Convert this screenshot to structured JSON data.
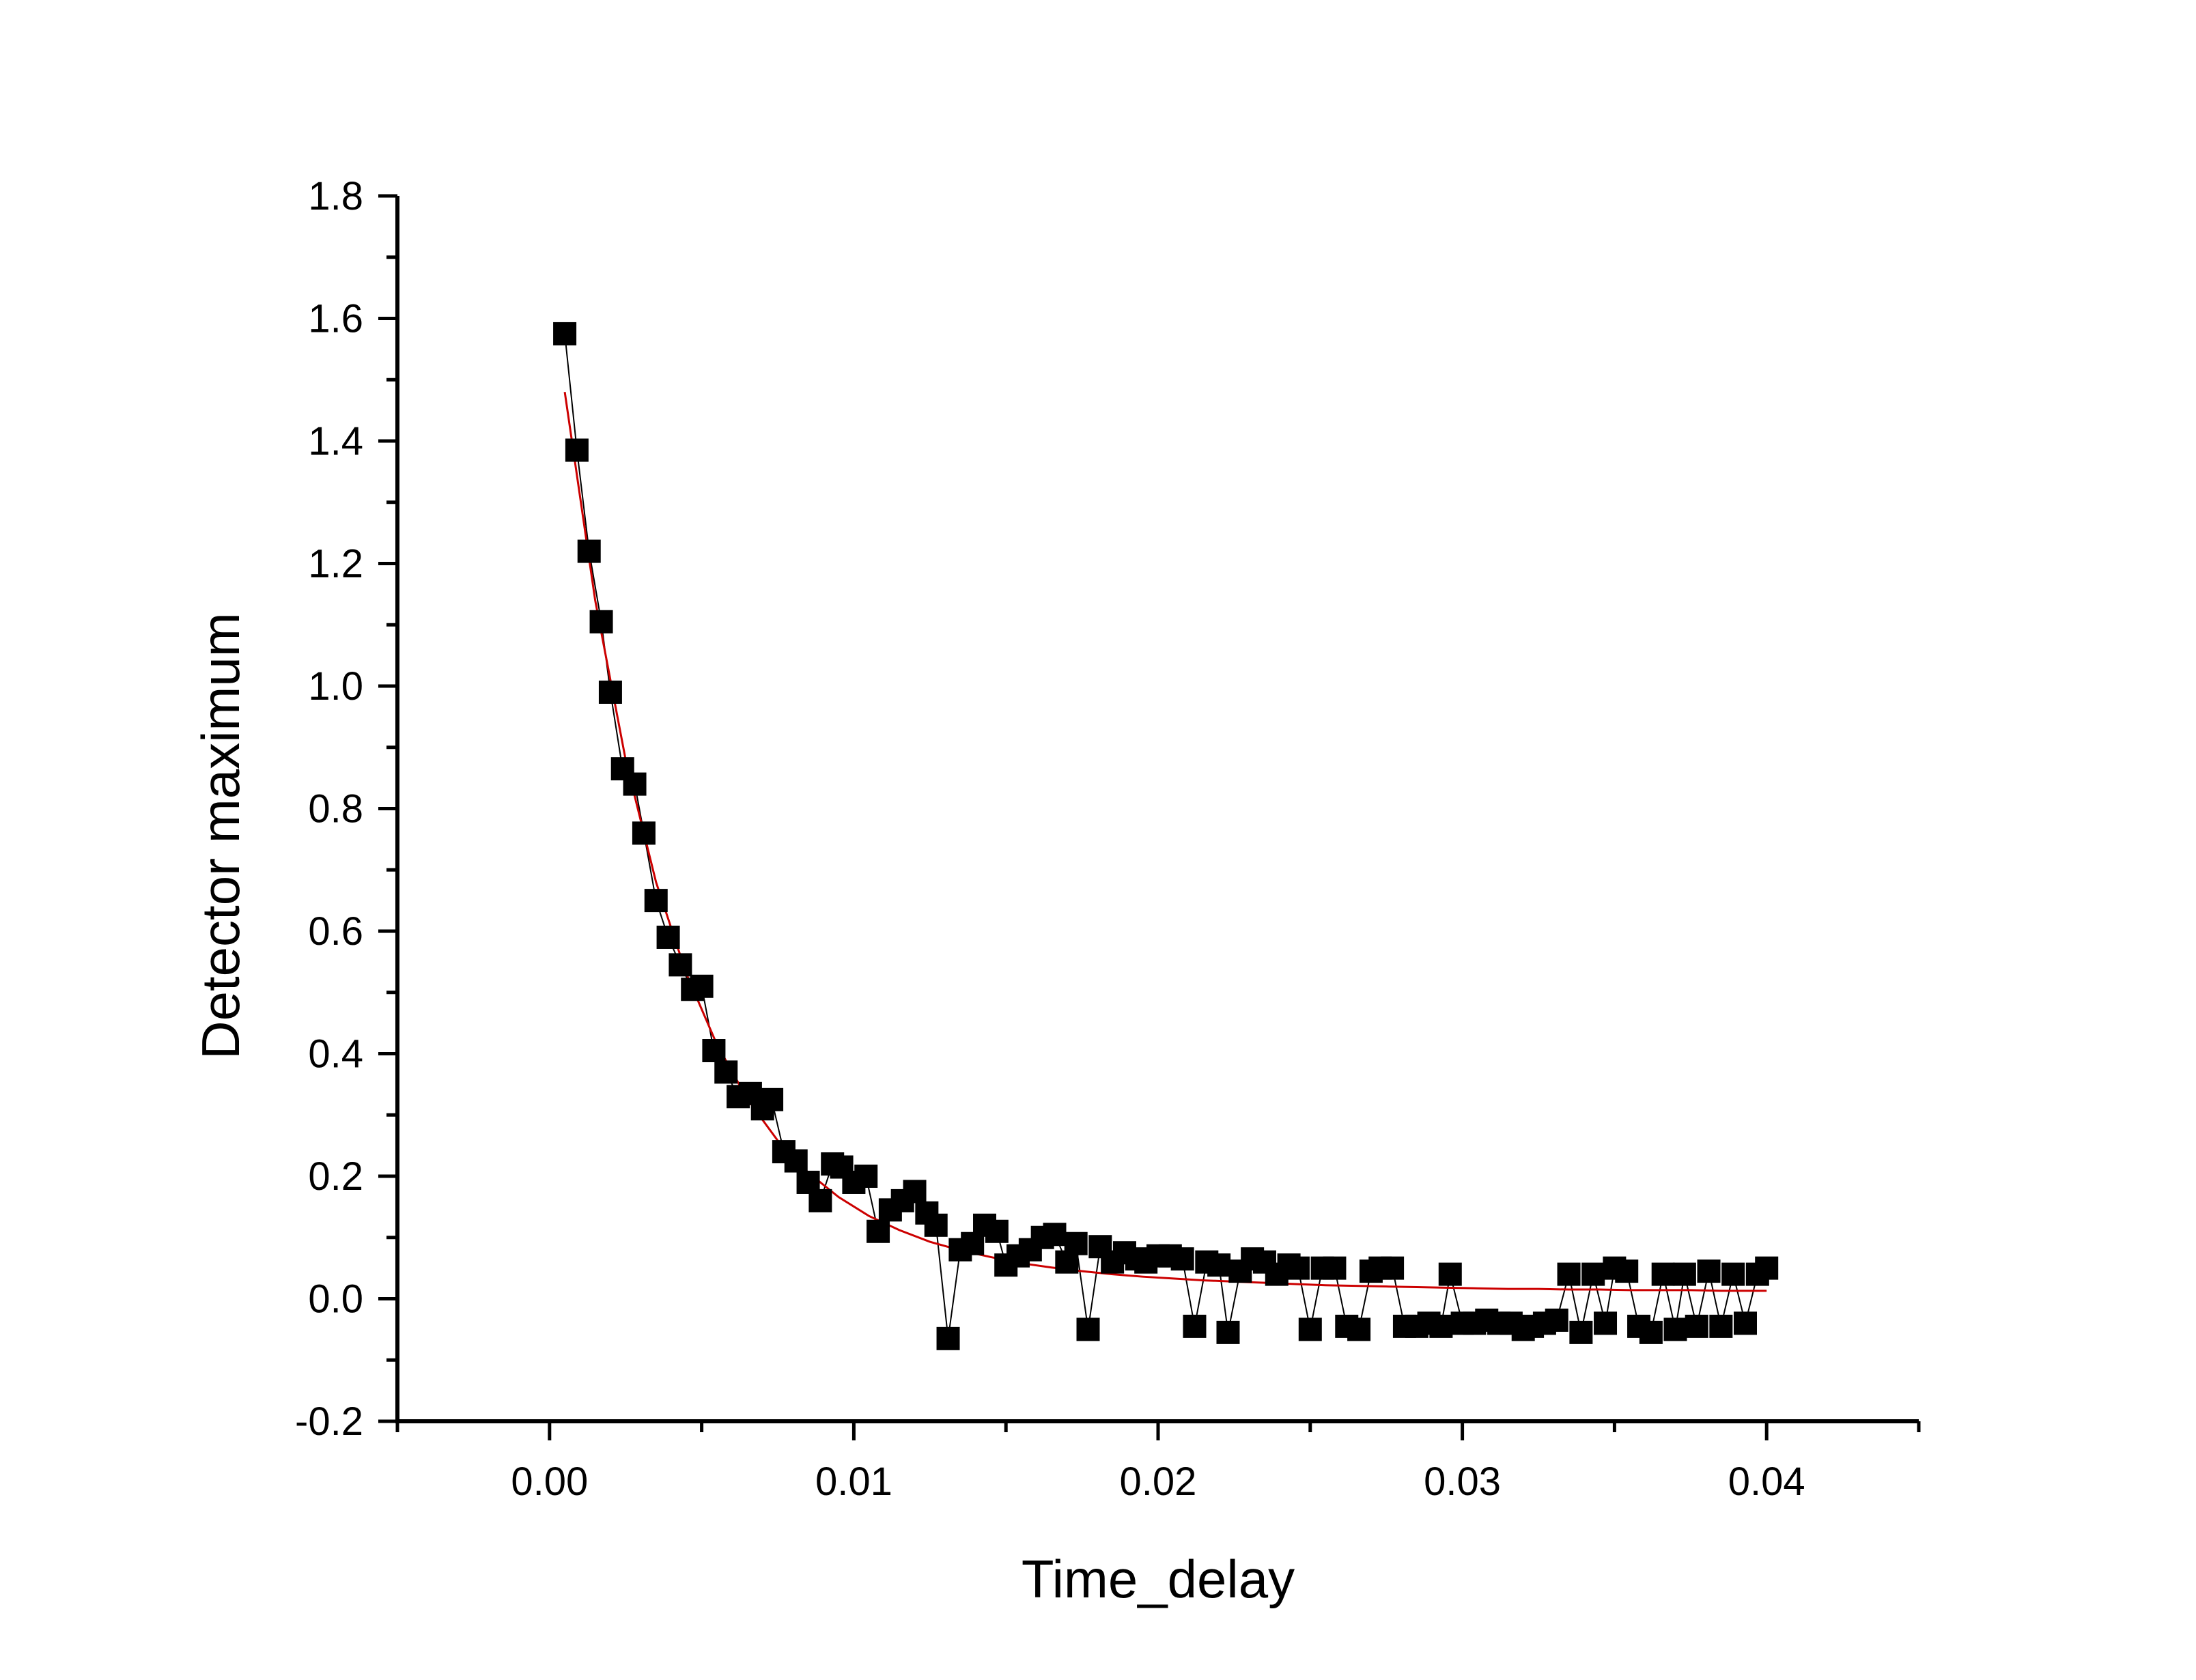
{
  "chart_data": {
    "type": "scatter",
    "title": "",
    "xlabel": "Time_delay",
    "ylabel": "Detector maximum",
    "xlim": [
      -0.005,
      0.045
    ],
    "ylim": [
      -0.2,
      1.8
    ],
    "xticks": [
      "0.00",
      "0.01",
      "0.02",
      "0.03",
      "0.04"
    ],
    "yticks": [
      "-0.2",
      "0.0",
      "0.2",
      "0.4",
      "0.6",
      "0.8",
      "1.0",
      "1.2",
      "1.4",
      "1.6",
      "1.8"
    ],
    "grid": false,
    "legend": "none",
    "colors": {
      "data": "#000000",
      "fit": "#cc0000"
    },
    "series": [
      {
        "kind": "scatter-with-line",
        "marker": "square",
        "x": [
          0.0005,
          0.0009,
          0.0013,
          0.0017,
          0.002,
          0.0024,
          0.0028,
          0.0031,
          0.0035,
          0.0039,
          0.0043,
          0.0047,
          0.005,
          0.0054,
          0.0058,
          0.0062,
          0.0066,
          0.007,
          0.0073,
          0.0077,
          0.0081,
          0.0085,
          0.0089,
          0.0093,
          0.0096,
          0.01,
          0.0104,
          0.0108,
          0.0112,
          0.0116,
          0.012,
          0.0124,
          0.0127,
          0.0131,
          0.0135,
          0.0139,
          0.0143,
          0.0147,
          0.015,
          0.0154,
          0.0158,
          0.0162,
          0.0166,
          0.017,
          0.0173,
          0.0177,
          0.0181,
          0.0185,
          0.0189,
          0.0193,
          0.0196,
          0.02,
          0.0204,
          0.0208,
          0.0212,
          0.0216,
          0.022,
          0.0223,
          0.0227,
          0.0231,
          0.0235,
          0.0239,
          0.0243,
          0.0246,
          0.025,
          0.0254,
          0.0258,
          0.0262,
          0.0266,
          0.027,
          0.0273,
          0.0277,
          0.0281,
          0.0285,
          0.0289,
          0.0293,
          0.0296,
          0.03,
          0.0304,
          0.0308,
          0.0312,
          0.0316,
          0.032,
          0.0323,
          0.0327,
          0.0331,
          0.0335,
          0.0339,
          0.0343,
          0.0347,
          0.035,
          0.0354,
          0.0358,
          0.0362,
          0.0366,
          0.037,
          0.0373,
          0.0377,
          0.0381,
          0.0385,
          0.0389,
          0.0393,
          0.0397,
          0.04
        ],
        "y": [
          1.575,
          1.385,
          1.22,
          1.105,
          0.99,
          0.865,
          0.84,
          0.76,
          0.65,
          0.59,
          0.545,
          0.505,
          0.51,
          0.405,
          0.37,
          0.33,
          0.335,
          0.31,
          0.325,
          0.24,
          0.225,
          0.19,
          0.16,
          0.22,
          0.215,
          0.19,
          0.2,
          0.11,
          0.145,
          0.16,
          0.175,
          0.14,
          0.12,
          -0.065,
          0.08,
          0.09,
          0.12,
          0.11,
          0.055,
          0.07,
          0.08,
          0.1,
          0.105,
          0.06,
          0.09,
          -0.05,
          0.085,
          0.06,
          0.075,
          0.065,
          0.06,
          0.07,
          0.07,
          0.065,
          -0.045,
          0.06,
          0.055,
          -0.055,
          0.045,
          0.065,
          0.06,
          0.04,
          0.055,
          0.05,
          -0.05,
          0.05,
          0.05,
          -0.045,
          -0.05,
          0.045,
          0.05,
          0.05,
          -0.045,
          -0.045,
          -0.04,
          -0.045,
          0.04,
          -0.04,
          -0.04,
          -0.035,
          -0.04,
          -0.04,
          -0.05,
          -0.045,
          -0.04,
          -0.035,
          0.04,
          -0.055,
          0.04,
          -0.04,
          0.05,
          0.045,
          -0.045,
          -0.055,
          0.04,
          -0.05,
          0.04,
          -0.045,
          0.045,
          -0.045,
          0.04,
          -0.04,
          0.04,
          0.05
        ]
      },
      {
        "kind": "fit-line",
        "x": [
          0.0005,
          0.0015,
          0.0025,
          0.0035,
          0.0045,
          0.0055,
          0.0065,
          0.0075,
          0.0085,
          0.0095,
          0.0105,
          0.0115,
          0.0125,
          0.0135,
          0.0145,
          0.0155,
          0.0165,
          0.0175,
          0.0185,
          0.0195,
          0.0205,
          0.0215,
          0.0225,
          0.0235,
          0.0245,
          0.0255,
          0.0265,
          0.0275,
          0.0285,
          0.0295,
          0.0305,
          0.0315,
          0.0325,
          0.0335,
          0.0345,
          0.0355,
          0.0365,
          0.0375,
          0.0385,
          0.0395,
          0.04
        ],
        "y": [
          1.48,
          1.14,
          0.88,
          0.68,
          0.53,
          0.415,
          0.326,
          0.258,
          0.206,
          0.166,
          0.135,
          0.112,
          0.093,
          0.079,
          0.068,
          0.058,
          0.051,
          0.045,
          0.04,
          0.036,
          0.033,
          0.03,
          0.028,
          0.026,
          0.024,
          0.022,
          0.021,
          0.02,
          0.019,
          0.018,
          0.017,
          0.016,
          0.016,
          0.015,
          0.015,
          0.014,
          0.014,
          0.014,
          0.013,
          0.013,
          0.013
        ]
      }
    ]
  }
}
